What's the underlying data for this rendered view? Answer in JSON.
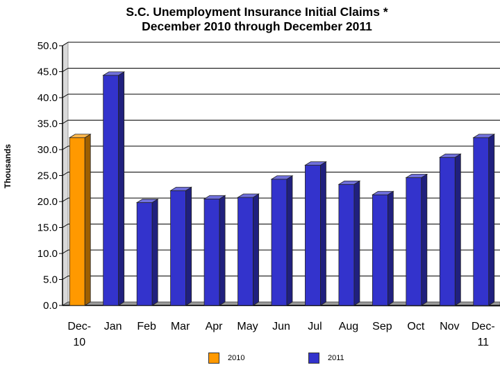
{
  "chart_data": {
    "type": "bar",
    "title": "S.C. Unemployment Insurance Initial Claims *",
    "subtitle": "December 2010 through December 2011",
    "ylabel": "Thousands",
    "xlabel": "",
    "ylim": [
      0,
      50
    ],
    "yticks": [
      "0.0",
      "5.0",
      "10.0",
      "15.0",
      "20.0",
      "25.0",
      "30.0",
      "35.0",
      "40.0",
      "45.0",
      "50.0"
    ],
    "grid": true,
    "legend_position": "bottom",
    "categories": [
      [
        "Dec-",
        "10"
      ],
      [
        "Jan"
      ],
      [
        "Feb"
      ],
      [
        "Mar"
      ],
      [
        "Apr"
      ],
      [
        "May"
      ],
      [
        "Jun"
      ],
      [
        "Jul"
      ],
      [
        "Aug"
      ],
      [
        "Sep"
      ],
      [
        "Oct"
      ],
      [
        "Nov"
      ],
      [
        "Dec-",
        "11"
      ]
    ],
    "series": [
      {
        "name": "2010",
        "color": "#ff9900",
        "values": [
          32.3,
          null,
          null,
          null,
          null,
          null,
          null,
          null,
          null,
          null,
          null,
          null,
          null
        ]
      },
      {
        "name": "2011",
        "color": "#3333cc",
        "values": [
          null,
          44.3,
          19.8,
          22.1,
          20.5,
          20.8,
          24.3,
          27.0,
          23.3,
          21.3,
          24.6,
          28.5,
          32.3
        ]
      }
    ]
  }
}
